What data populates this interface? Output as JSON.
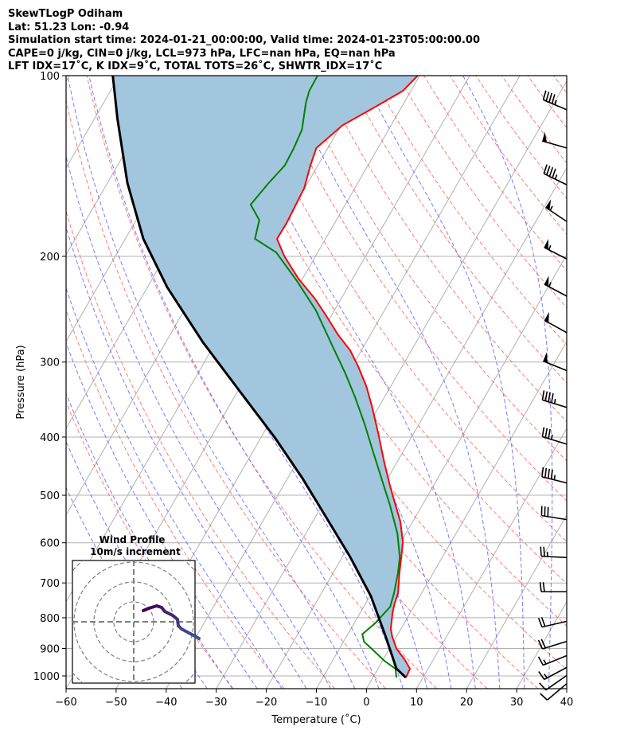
{
  "header": {
    "line1": "SkewTLogP Odiham",
    "line2": "Lat: 51.23   Lon: -0.94",
    "line3": "Simulation start time: 2024-01-21_00:00:00, Valid time: 2024-01-23T05:00:00.00",
    "line4": "CAPE=0 j/kg, CIN=0 j/kg, LCL=973 hPa, LFC=nan hPa, EQ=nan hPa",
    "line5": "LFT IDX=17˚C, K IDX=9˚C, TOTAL TOTS=26˚C, SHWTR_IDX=17˚C"
  },
  "chart_data": {
    "type": "line",
    "subtype": "skew-t log-p",
    "xlabel": "Temperature (˚C)",
    "ylabel": "Pressure (hPa)",
    "xlim": [
      -60,
      40
    ],
    "ylim": [
      1050,
      100
    ],
    "xticks": [
      "−60",
      "−50",
      "−40",
      "−30",
      "−20",
      "−10",
      "0",
      "10",
      "20",
      "30",
      "40"
    ],
    "xtick_values": [
      -60,
      -50,
      -40,
      -30,
      -20,
      -10,
      0,
      10,
      20,
      30,
      40
    ],
    "yticks": [
      "100",
      "200",
      "300",
      "400",
      "500",
      "600",
      "700",
      "800",
      "900",
      "1000"
    ],
    "ytick_values": [
      100,
      200,
      300,
      400,
      500,
      600,
      700,
      800,
      900,
      1000
    ],
    "grid": true,
    "colors": {
      "temperature": "#ff0000",
      "dewpoint": "#008000",
      "parcel": "#000000",
      "cin_fill": "#a3c6df",
      "isotherm": "#b0b0b0",
      "dry_adiabat": "#ff6b6b",
      "moist_adiabat": "#6b6bff"
    },
    "series": [
      {
        "name": "temperature",
        "pressure": [
          1006,
          973,
          938,
          901,
          861,
          836,
          786,
          762,
          728,
          675,
          634,
          597,
          553,
          513,
          482,
          440,
          395,
          355,
          329,
          305,
          287,
          270,
          252,
          235,
          218,
          200,
          187,
          176,
          154,
          141,
          132,
          121,
          113,
          106,
          100
        ],
        "values": [
          6.6,
          6.4,
          4.2,
          1.4,
          -0.8,
          -2.0,
          -3.5,
          -4.1,
          -4.7,
          -6.7,
          -8.2,
          -9.7,
          -12.5,
          -15.9,
          -18.7,
          -22.6,
          -27.0,
          -31.5,
          -34.9,
          -38.8,
          -42.2,
          -46.5,
          -50.8,
          -55.3,
          -60.8,
          -66.2,
          -69.7,
          -69.6,
          -70.1,
          -71.5,
          -72.3,
          -69.7,
          -65.4,
          -61.6,
          -60.4
        ]
      },
      {
        "name": "dewpoint",
        "pressure": [
          1006,
          973,
          944,
          909,
          877,
          852,
          817,
          767,
          728,
          675,
          634,
          579,
          520,
          469,
          423,
          381,
          343,
          313,
          282,
          246,
          220,
          197,
          187,
          174,
          164,
          152,
          141,
          132,
          123,
          111,
          106,
          100
        ],
        "values": [
          4.7,
          3.5,
          0.4,
          -2.8,
          -5.9,
          -7.1,
          -5.8,
          -4.7,
          -5.5,
          -7.0,
          -8.5,
          -11.7,
          -16.4,
          -21.2,
          -26.0,
          -30.8,
          -35.9,
          -40.6,
          -46.3,
          -53.7,
          -60.8,
          -68.3,
          -74.1,
          -75.4,
          -78.9,
          -77.9,
          -76.6,
          -76.8,
          -77.3,
          -79.6,
          -80.3,
          -80.4
        ]
      },
      {
        "name": "parcel",
        "pressure": [
          1006,
          973,
          861,
          736,
          634,
          545,
          468,
          401,
          334,
          278,
          225,
          187,
          151,
          118,
          100
        ],
        "values": [
          6.6,
          3.7,
          -2.1,
          -9.8,
          -18.4,
          -27.7,
          -37.1,
          -47.2,
          -59.9,
          -72.6,
          -86.1,
          -96.4,
          -106.0,
          -115.4,
          -121.3
        ]
      }
    ],
    "wind_barbs": {
      "units": "kt",
      "pressure": [
        114,
        132,
        152,
        175,
        202,
        233,
        268,
        310,
        357,
        411,
        477,
        549,
        635,
        724,
        811,
        876,
        925,
        968,
        998,
        1030
      ],
      "speed": [
        45,
        50,
        45,
        55,
        55,
        55,
        50,
        50,
        45,
        35,
        45,
        30,
        25,
        20,
        20,
        20,
        15,
        15,
        10,
        10
      ],
      "direction": [
        293,
        286,
        296,
        304,
        297,
        298,
        299,
        292,
        287,
        287,
        284,
        279,
        273,
        270,
        257,
        253,
        248,
        242,
        235,
        230
      ]
    },
    "hodograph": {
      "title": "Wind Profile",
      "subtitle": "10m/s increment",
      "ring_increment_ms": 10,
      "u": [
        4.8,
        7.6,
        11.6,
        14.0,
        15.6,
        19.6,
        22.0,
        22.4,
        24.0,
        30.0,
        32.8
      ],
      "v": [
        5.6,
        6.8,
        8.0,
        7.2,
        5.2,
        3.2,
        1.2,
        -2.0,
        -3.6,
        -6.8,
        -8.4
      ],
      "color_start": "#440154",
      "color_end": "#3b528b"
    }
  }
}
